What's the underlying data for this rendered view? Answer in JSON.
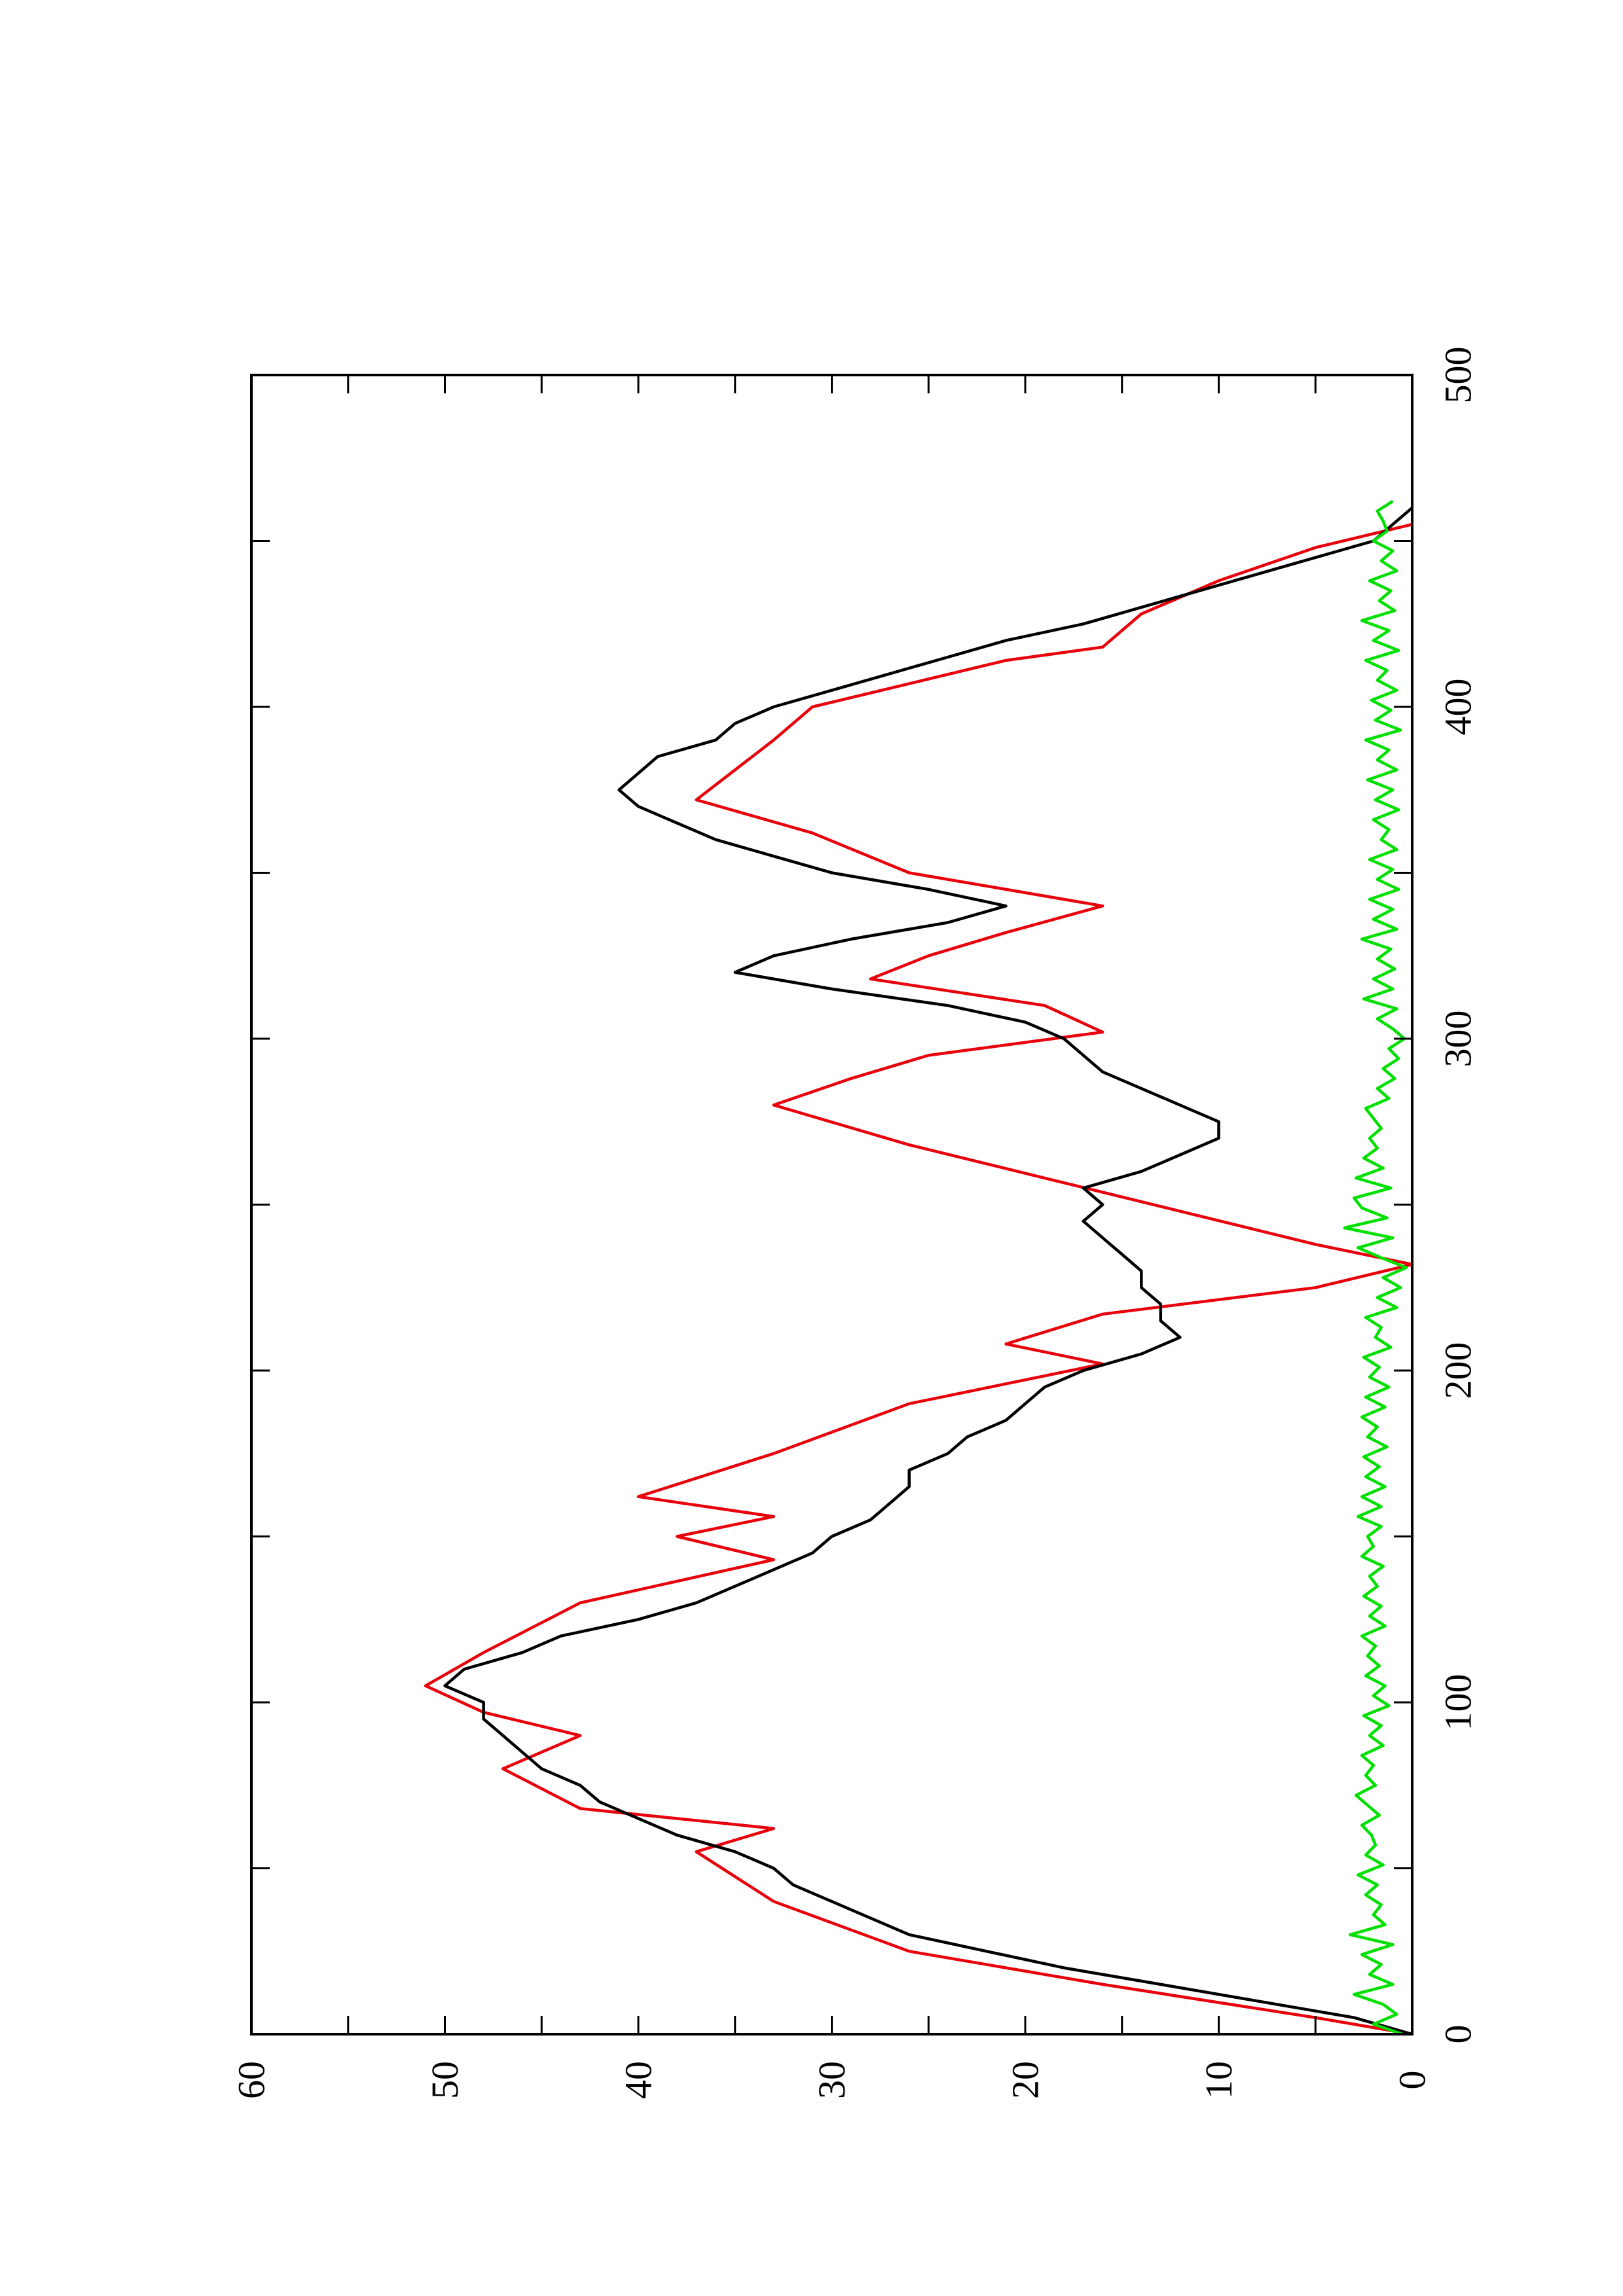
{
  "chart_data": {
    "type": "line",
    "orientation": "rotated 90 degrees counter-clockwise on the page",
    "title": "",
    "xlabel": "",
    "ylabel": "",
    "xlim": [
      0,
      500
    ],
    "ylim": [
      0,
      60
    ],
    "x_ticks": [
      0,
      100,
      200,
      300,
      400,
      500
    ],
    "x_tick_labels": [
      "0",
      "100",
      "200",
      "300",
      "400",
      "500"
    ],
    "y_ticks": [
      0,
      10,
      20,
      30,
      40,
      50,
      60
    ],
    "y_tick_labels": [
      "0",
      "10",
      "20",
      "30",
      "40",
      "50",
      "60"
    ],
    "grid": false,
    "legend": "none",
    "series": [
      {
        "color": "#e8000b",
        "style": "step",
        "x": [
          0,
          5,
          15,
          25,
          40,
          55,
          62,
          68,
          80,
          90,
          97,
          105,
          115,
          130,
          143,
          150,
          156,
          162,
          175,
          190,
          202,
          208,
          217,
          225,
          232,
          238,
          248,
          258,
          268,
          280,
          288,
          295,
          302,
          310,
          318,
          325,
          332,
          340,
          350,
          362,
          372,
          390,
          400,
          414,
          418,
          428,
          438,
          448,
          455
        ],
        "y": [
          0,
          5,
          16,
          26,
          33,
          37,
          33,
          43,
          47,
          43,
          48,
          51,
          48,
          43,
          33,
          38,
          33,
          40,
          33,
          26,
          16,
          21,
          16,
          5,
          0,
          5,
          12,
          19,
          26,
          33,
          29,
          25,
          16,
          19,
          28,
          25,
          21,
          16,
          26,
          31,
          37,
          33,
          31,
          21,
          16,
          14,
          10,
          5,
          0
        ]
      },
      {
        "color": "#000000",
        "style": "line",
        "x": [
          0,
          5,
          10,
          15,
          20,
          25,
          30,
          35,
          40,
          45,
          50,
          55,
          60,
          65,
          70,
          75,
          80,
          85,
          90,
          95,
          100,
          105,
          110,
          115,
          120,
          125,
          130,
          135,
          140,
          145,
          150,
          155,
          160,
          165,
          170,
          175,
          180,
          185,
          190,
          195,
          200,
          205,
          210,
          215,
          220,
          225,
          230,
          235,
          240,
          245,
          250,
          255,
          260,
          265,
          270,
          275,
          280,
          285,
          290,
          295,
          300,
          305,
          310,
          315,
          320,
          325,
          330,
          335,
          340,
          345,
          350,
          355,
          360,
          365,
          370,
          375,
          380,
          385,
          390,
          395,
          400,
          405,
          410,
          415,
          420,
          425,
          430,
          435,
          440,
          445,
          450,
          455,
          460
        ],
        "y": [
          0,
          3,
          8,
          13,
          18,
          22,
          26,
          28,
          30,
          32,
          33,
          35,
          38,
          40,
          42,
          43,
          45,
          46,
          47,
          48,
          48,
          50,
          49,
          46,
          44,
          40,
          37,
          35,
          33,
          31,
          30,
          28,
          27,
          26,
          26,
          24,
          23,
          21,
          20,
          19,
          17,
          14,
          12,
          13,
          13,
          14,
          14,
          15,
          16,
          17,
          16,
          17,
          14,
          12,
          10,
          10,
          12,
          14,
          16,
          17,
          18,
          20,
          24,
          30,
          35,
          33,
          29,
          24,
          21,
          25,
          30,
          33,
          36,
          38,
          40,
          41,
          40,
          39,
          36,
          35,
          33,
          30,
          27,
          24,
          21,
          17,
          14,
          11,
          8,
          5,
          2,
          1,
          0
        ]
      },
      {
        "color": "#00e000",
        "style": "line",
        "x": [
          0,
          3,
          6,
          9,
          12,
          15,
          18,
          21,
          24,
          27,
          30,
          33,
          36,
          39,
          42,
          45,
          48,
          51,
          54,
          57,
          60,
          63,
          66,
          69,
          72,
          75,
          78,
          81,
          84,
          87,
          90,
          93,
          96,
          99,
          102,
          105,
          108,
          111,
          114,
          117,
          120,
          123,
          126,
          129,
          132,
          135,
          138,
          141,
          144,
          147,
          150,
          153,
          156,
          159,
          162,
          165,
          168,
          171,
          174,
          177,
          180,
          183,
          186,
          189,
          192,
          195,
          198,
          201,
          204,
          207,
          210,
          213,
          216,
          219,
          222,
          225,
          228,
          231,
          234,
          237,
          240,
          243,
          246,
          249,
          252,
          255,
          258,
          261,
          264,
          267,
          270,
          273,
          276,
          279,
          282,
          285,
          288,
          291,
          294,
          297,
          300,
          303,
          306,
          309,
          312,
          315,
          318,
          321,
          324,
          327,
          330,
          333,
          336,
          339,
          342,
          345,
          348,
          351,
          354,
          357,
          360,
          363,
          366,
          369,
          372,
          375,
          378,
          381,
          384,
          387,
          390,
          393,
          396,
          399,
          402,
          405,
          408,
          411,
          414,
          417,
          420,
          423,
          426,
          429,
          432,
          435,
          438,
          441,
          444,
          447,
          450,
          453,
          456,
          459,
          462
        ],
        "y": [
          0.5,
          2.0,
          0.8,
          1.5,
          3.0,
          1.0,
          2.2,
          1.6,
          2.6,
          1.0,
          3.2,
          1.4,
          2.0,
          1.6,
          2.4,
          1.8,
          2.8,
          1.5,
          2.4,
          1.9,
          2.1,
          2.6,
          1.7,
          2.3,
          2.9,
          1.9,
          2.4,
          2.0,
          2.6,
          1.5,
          2.2,
          1.6,
          2.5,
          1.2,
          2.0,
          1.4,
          2.4,
          1.7,
          2.3,
          1.9,
          2.6,
          1.4,
          2.2,
          1.6,
          2.5,
          1.8,
          2.2,
          1.5,
          2.6,
          2.0,
          2.3,
          1.6,
          2.8,
          1.6,
          2.6,
          1.4,
          2.4,
          1.7,
          2.5,
          1.3,
          2.3,
          1.8,
          2.6,
          1.4,
          2.4,
          1.2,
          2.2,
          1.7,
          2.5,
          1.1,
          1.9,
          1.6,
          2.4,
          0.8,
          1.8,
          0.6,
          1.5,
          0.3,
          1.6,
          2.8,
          1.0,
          3.5,
          1.3,
          2.6,
          3.0,
          1.1,
          2.9,
          1.5,
          2.5,
          1.8,
          2.2,
          1.6,
          2.0,
          2.4,
          1.2,
          1.8,
          0.9,
          1.5,
          0.7,
          1.2,
          0.4,
          1.0,
          1.8,
          0.8,
          2.5,
          1.0,
          2.0,
          0.9,
          1.8,
          1.1,
          2.6,
          0.8,
          2.0,
          1.0,
          2.2,
          0.7,
          1.8,
          1.0,
          2.2,
          0.8,
          1.6,
          1.2,
          2.0,
          0.7,
          1.9,
          1.0,
          2.3,
          0.8,
          1.8,
          1.2,
          2.4,
          0.6,
          1.9,
          1.1,
          2.1,
          0.8,
          1.8,
          1.3,
          2.4,
          0.7,
          2.0,
          1.2,
          2.6,
          0.9,
          1.7,
          1.1,
          2.2,
          0.8,
          1.6,
          1.0,
          2.0,
          1.3,
          1.5,
          1.8,
          1.0
        ]
      }
    ]
  }
}
